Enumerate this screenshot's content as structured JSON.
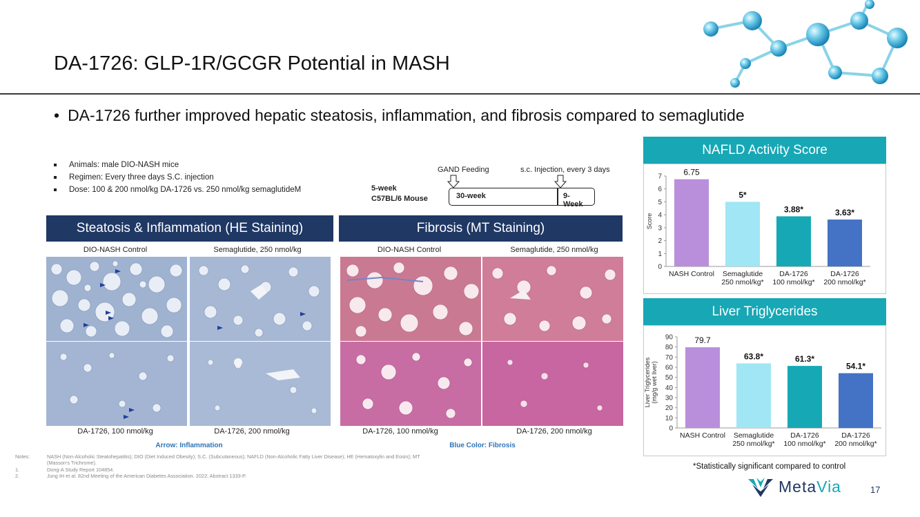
{
  "slide": {
    "title": "DA-1726: GLP-1R/GCGR Potential in MASH",
    "bullet": "DA-1726 further improved hepatic steatosis, inflammation, and fibrosis compared to semaglutide",
    "page_number": "17",
    "sig_note": "*Statistically significant compared to control",
    "logo": {
      "part1": "Meta",
      "part2": "Via"
    }
  },
  "study_details": [
    "Animals: male DIO-NASH mice",
    "Regimen: Every three days S.C. injection",
    "Dose: 100 & 200 nmol/kg DA-1726 vs. 250 nmol/kg semaglutideM"
  ],
  "timeline": {
    "start_line1": "5-week",
    "start_line2": "C57BL/6 Mouse",
    "gand_label": "GAND Feeding",
    "sc_label": "s.c. Injection, every 3 days",
    "phase1": "30-week",
    "phase2": "9-Week"
  },
  "panels": {
    "he": {
      "title": "Steatosis & Inflammation (HE Staining)",
      "labels": [
        "DIO-NASH Control",
        "Semaglutide, 250 nmol/kg",
        "DA-1726, 100 nmol/kg",
        "DA-1726, 200 nmol/kg"
      ],
      "caption": "Arrow: Inflammation"
    },
    "mt": {
      "title": "Fibrosis (MT Staining)",
      "labels": [
        "DIO-NASH Control",
        "Semaglutide, 250 nmol/kg",
        "DA-1726, 100 nmol/kg",
        "DA-1726, 200 nmol/kg"
      ],
      "caption": "Blue Color: Fibrosis"
    }
  },
  "notes": [
    {
      "k": "Notes:",
      "v": "NASH (Non-Alcoholic Steatohepatitis); DIO (Diet Induced Obesity); S.C. (Subcutaneous); NAFLD (Non-Alcoholic Fatty Liver Disease); HE (Hematoxylin and Eosin); MT (Masson's Trichrome)."
    },
    {
      "k": "1.",
      "v": "Dong-A Study Report 104854."
    },
    {
      "k": "2.",
      "v": "Jung IH et al. 82nd Meeting of the American Diabetes Association. 2022; Abstract 1333-P."
    }
  ],
  "chart_data": [
    {
      "type": "bar",
      "title": "NAFLD Activity Score",
      "ylabel": "Score",
      "xlabel": "",
      "ylim": [
        0,
        7
      ],
      "yticks": [
        "0",
        "1",
        "2",
        "3",
        "4",
        "5",
        "6",
        "7"
      ],
      "categories": [
        [
          "NASH Control"
        ],
        [
          "Semaglutide",
          "250 nmol/kg*"
        ],
        [
          "DA-1726",
          "100 nmol/kg*"
        ],
        [
          "DA-1726",
          "200 nmol/kg*"
        ]
      ],
      "values": [
        6.75,
        5,
        3.88,
        3.63
      ],
      "data_labels": [
        "6.75",
        "5*",
        "3.88*",
        "3.63*"
      ],
      "colors": [
        "#b98fdb",
        "#a0e6f5",
        "#16a9b5",
        "#4472c4"
      ]
    },
    {
      "type": "bar",
      "title": "Liver Triglycerides",
      "ylabel": [
        "Liver Triglycerides",
        "(mg/g wet liver)"
      ],
      "xlabel": "",
      "ylim": [
        0,
        90
      ],
      "yticks": [
        "0",
        "10",
        "20",
        "30",
        "40",
        "50",
        "60",
        "70",
        "80",
        "90"
      ],
      "categories": [
        [
          "NASH Control"
        ],
        [
          "Semaglutide",
          "250 nmol/kg*"
        ],
        [
          "DA-1726",
          "100 nmol/kg*"
        ],
        [
          "DA-1726",
          "200 nmol/kg*"
        ]
      ],
      "values": [
        79.7,
        63.8,
        61.3,
        54.1
      ],
      "data_labels": [
        "79.7",
        "63.8*",
        "61.3*",
        "54.1*"
      ],
      "colors": [
        "#b98fdb",
        "#a0e6f5",
        "#16a9b5",
        "#4472c4"
      ]
    }
  ],
  "colors": {
    "navy": "#1f3864",
    "teal": "#17a7b5",
    "caption_blue": "#2e74b5"
  }
}
